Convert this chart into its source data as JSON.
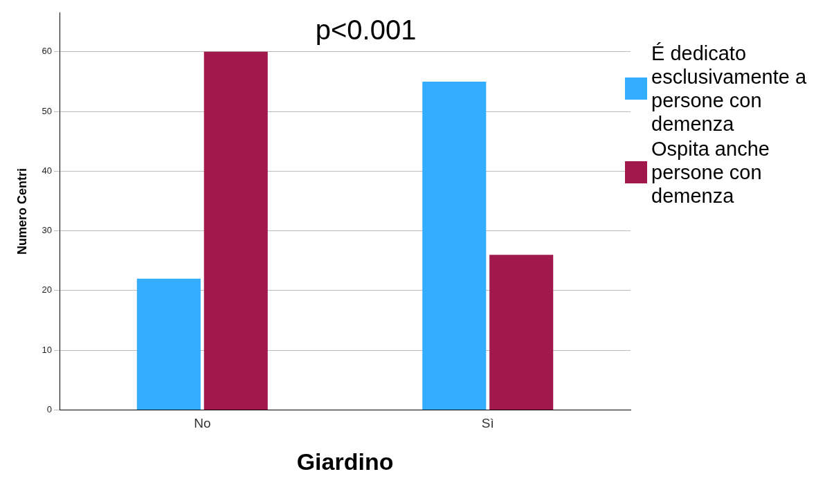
{
  "chart_data": {
    "type": "bar",
    "xlabel": "Giardino",
    "ylabel": "Numero Centri",
    "annotations": [
      "p<0.001"
    ],
    "categories": [
      "No",
      "Sì"
    ],
    "series": [
      {
        "name": "É dedicato esclusivamente a persone con demenza",
        "color": "#33adff",
        "values": [
          22,
          55
        ]
      },
      {
        "name": "Ospita anche persone con demenza",
        "color": "#a0184c",
        "values": [
          60,
          26
        ]
      }
    ],
    "ylim": [
      0,
      66.5
    ],
    "yticks": [
      0,
      10,
      20,
      30,
      40,
      50,
      60
    ],
    "grid": "y",
    "legend": "right"
  }
}
